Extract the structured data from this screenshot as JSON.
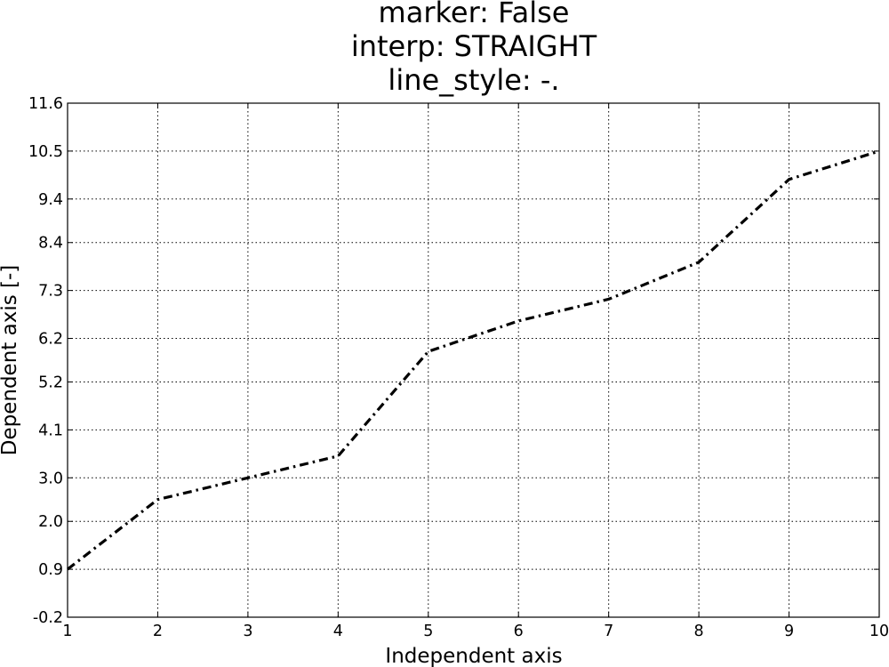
{
  "chart_data": {
    "type": "line",
    "title": [
      "marker: False",
      "interp: STRAIGHT",
      "line_style: -."
    ],
    "xlabel": "Independent axis",
    "ylabel": "Dependent axis [-]",
    "xlim": [
      1,
      10
    ],
    "ylim": [
      -0.2,
      11.6
    ],
    "x_ticks": [
      1,
      2,
      3,
      4,
      5,
      6,
      7,
      8,
      9,
      10
    ],
    "x_tick_labels": [
      "1",
      "2",
      "3",
      "4",
      "5",
      "6",
      "7",
      "8",
      "9",
      "10"
    ],
    "y_ticks": [
      -0.2,
      0.9,
      2.0,
      3.0,
      4.1,
      5.2,
      6.2,
      7.3,
      8.4,
      9.4,
      10.5,
      11.6
    ],
    "y_tick_labels": [
      "-0.2",
      "0.9",
      "2.0",
      "3.0",
      "4.1",
      "5.2",
      "6.2",
      "7.3",
      "8.4",
      "9.4",
      "10.5",
      "11.6"
    ],
    "grid": true,
    "series": [
      {
        "line_style": "-.",
        "marker": false,
        "color": "#000000",
        "x": [
          1,
          2,
          3,
          4,
          5,
          6,
          7,
          8,
          9,
          10
        ],
        "y": [
          0.9,
          2.5,
          3.0,
          3.5,
          5.9,
          6.6,
          7.1,
          7.95,
          9.85,
          10.5
        ]
      }
    ]
  }
}
